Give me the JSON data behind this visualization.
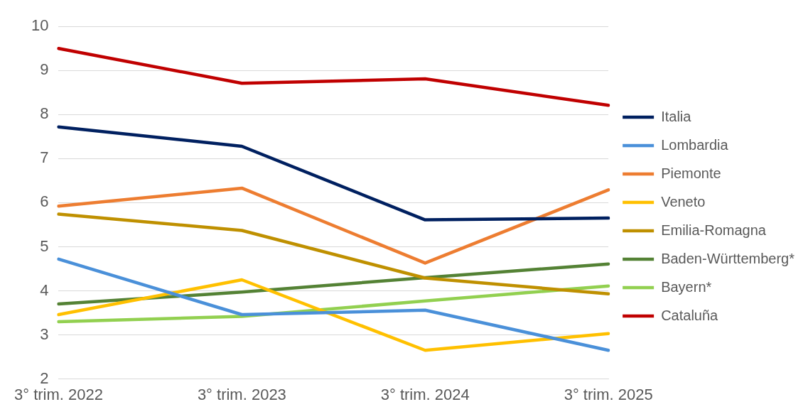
{
  "chart_data": {
    "type": "line",
    "categories": [
      "3° trim. 2022",
      "3° trim. 2023",
      "3° trim. 2024",
      "3° trim. 2025"
    ],
    "series": [
      {
        "name": "Italia",
        "color": "#002060",
        "values": [
          7.72,
          7.28,
          5.61,
          5.65
        ]
      },
      {
        "name": "Lombardia",
        "color": "#4a90d9",
        "values": [
          4.72,
          3.46,
          3.56,
          2.65
        ]
      },
      {
        "name": "Piemonte",
        "color": "#ed7d31",
        "values": [
          5.92,
          6.33,
          4.63,
          6.29
        ]
      },
      {
        "name": "Veneto",
        "color": "#ffc000",
        "values": [
          3.46,
          4.25,
          2.65,
          3.03
        ]
      },
      {
        "name": "Emilia-Romagna",
        "color": "#bf9000",
        "values": [
          5.74,
          5.37,
          4.29,
          3.93
        ]
      },
      {
        "name": "Baden-Württemberg*",
        "color": "#548235",
        "values": [
          3.7,
          3.97,
          4.3,
          4.61
        ]
      },
      {
        "name": "Bayern*",
        "color": "#92d050",
        "values": [
          3.3,
          3.42,
          3.77,
          4.11
        ]
      },
      {
        "name": "Cataluña",
        "color": "#c00000",
        "values": [
          9.5,
          8.71,
          8.81,
          8.21
        ]
      }
    ],
    "ylim": [
      2,
      10
    ],
    "yticks": [
      2,
      3,
      4,
      5,
      6,
      7,
      8,
      9,
      10
    ],
    "grid": "y",
    "legend": "right",
    "marker": "none",
    "line_style": "solid"
  }
}
